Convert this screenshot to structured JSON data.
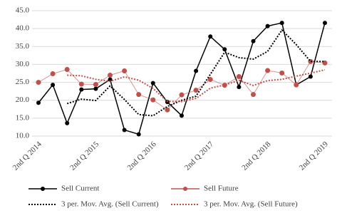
{
  "chart_data": {
    "type": "line",
    "categories": [
      "2nd Q 2014",
      null,
      null,
      null,
      "2nd Q 2015",
      null,
      null,
      null,
      "2nd Q 2016",
      null,
      null,
      null,
      "2nd Q 2017",
      null,
      null,
      null,
      "2nd Q 2018",
      null,
      null,
      null,
      "2nd Q 2019"
    ],
    "series": [
      {
        "name": "Sell Current",
        "color": "#000000",
        "marker": true,
        "dotted": false,
        "values": [
          19.3,
          24.3,
          13.6,
          23.0,
          23.2,
          25.8,
          11.7,
          10.5,
          24.8,
          19.5,
          15.7,
          28.2,
          37.8,
          34.2,
          23.7,
          36.5,
          40.7,
          41.6,
          24.3,
          26.6,
          41.6
        ]
      },
      {
        "name": "Sell Future",
        "color": "#c0504d",
        "marker": true,
        "dotted": false,
        "values": [
          25.0,
          27.4,
          28.6,
          24.5,
          24.4,
          27.0,
          28.2,
          21.6,
          20.1,
          17.3,
          21.5,
          22.8,
          25.8,
          24.2,
          26.6,
          21.6,
          28.3,
          27.6,
          24.3,
          30.8,
          30.4
        ]
      },
      {
        "name": "3 per. Mov. Avg. (Sell Current)",
        "color": "#000000",
        "marker": false,
        "dotted": true,
        "values": [
          null,
          null,
          19.07,
          20.3,
          19.93,
          24.0,
          20.23,
          16.0,
          15.67,
          18.27,
          20.0,
          21.13,
          27.23,
          33.4,
          31.9,
          31.47,
          33.63,
          39.6,
          35.53,
          30.83,
          30.83
        ]
      },
      {
        "name": "3 per. Mov. Avg. (Sell Future)",
        "color": "#c0504d",
        "marker": false,
        "dotted": true,
        "values": [
          null,
          null,
          27.0,
          26.83,
          25.83,
          25.3,
          26.53,
          25.6,
          23.3,
          19.67,
          19.63,
          20.53,
          23.37,
          24.27,
          25.53,
          24.13,
          25.5,
          25.83,
          26.73,
          27.57,
          28.5
        ]
      }
    ],
    "ylim": [
      10,
      45
    ],
    "yticks": [
      {
        "value": 10,
        "label": "10.0"
      },
      {
        "value": 15,
        "label": "15.0"
      },
      {
        "value": 20,
        "label": "20.0"
      },
      {
        "value": 25,
        "label": "25.0"
      },
      {
        "value": 30,
        "label": "30.0"
      },
      {
        "value": 35,
        "label": "35.0"
      },
      {
        "value": 40,
        "label": "40.0"
      },
      {
        "value": 45,
        "label": "45.0"
      }
    ],
    "grid": true,
    "legend": "bottom"
  }
}
